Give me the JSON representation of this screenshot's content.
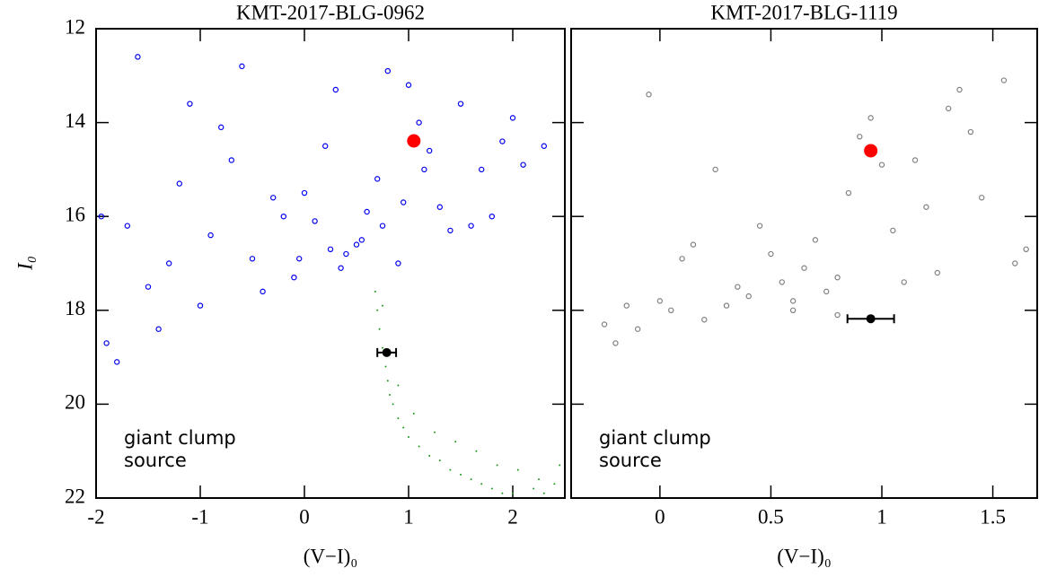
{
  "chart_data": [
    {
      "type": "scatter",
      "title": "KMT-2017-BLG-0962",
      "x_label": "(V−I)₀",
      "y_label": "I₀",
      "xlim": [
        -2,
        2.5
      ],
      "xticks": [
        -2,
        -1,
        0,
        1,
        2
      ],
      "ylim": [
        22,
        12
      ],
      "yticks": [
        12,
        14,
        16,
        18,
        20,
        22
      ],
      "series": [
        {
          "marker": "open-circle",
          "color": "#0000ee",
          "x": [
            -1.9,
            -1.7,
            -1.5,
            -1.3,
            -1.1,
            -0.9,
            -0.7,
            -0.5,
            -0.3,
            -0.1,
            0.1,
            0.3,
            0.5,
            0.7,
            0.9,
            1.1,
            1.3,
            1.5,
            1.7,
            1.9,
            2.1,
            -1.8,
            -1.4,
            -1.0,
            -0.6,
            -0.2,
            0.2,
            0.6,
            1.0,
            1.4,
            1.8,
            -1.6,
            -1.2,
            -0.8,
            -0.4,
            0.0,
            0.4,
            0.8,
            1.2,
            1.6,
            2.0,
            2.3,
            -1.95,
            -0.05,
            0.35,
            0.55,
            0.75,
            0.95,
            1.15,
            0.25
          ],
          "values": [
            18.7,
            16.2,
            17.5,
            17.0,
            13.6,
            16.4,
            14.8,
            16.9,
            15.6,
            17.3,
            16.1,
            13.3,
            16.6,
            15.2,
            17.0,
            14.0,
            15.8,
            13.6,
            15.0,
            14.4,
            14.9,
            19.1,
            18.4,
            17.9,
            12.8,
            16.0,
            14.5,
            15.9,
            13.2,
            16.3,
            16.0,
            12.6,
            15.3,
            14.1,
            17.6,
            15.5,
            16.8,
            12.9,
            14.6,
            16.2,
            13.9,
            14.5,
            16.0,
            16.9,
            17.1,
            16.5,
            16.2,
            15.7,
            15.0,
            16.7
          ]
        },
        {
          "marker": "dot",
          "color": "#1a9a1a",
          "x": [
            0.68,
            0.7,
            0.72,
            0.75,
            0.78,
            0.8,
            0.82,
            0.85,
            0.9,
            0.95,
            1.0,
            1.1,
            1.2,
            1.3,
            1.4,
            1.5,
            1.6,
            1.7,
            1.8,
            1.9,
            2.0,
            2.1,
            2.2,
            2.3,
            2.4,
            0.75,
            0.9,
            1.05,
            1.25,
            1.45,
            1.65,
            1.85,
            2.05,
            2.25,
            2.45
          ],
          "values": [
            17.6,
            18.0,
            18.4,
            18.8,
            19.2,
            19.5,
            19.8,
            20.0,
            20.3,
            20.5,
            20.7,
            20.9,
            21.1,
            21.2,
            21.4,
            21.5,
            21.6,
            21.7,
            21.8,
            21.9,
            21.9,
            22.0,
            21.8,
            21.9,
            21.7,
            17.9,
            19.6,
            20.2,
            20.6,
            20.8,
            21.0,
            21.3,
            21.4,
            21.6,
            21.3
          ]
        },
        {
          "name": "giant clump",
          "marker": "filled-circle",
          "color": "#ff0000",
          "x": [
            1.05
          ],
          "values": [
            14.39
          ]
        },
        {
          "name": "source",
          "marker": "filled-circle",
          "color": "#000000",
          "x": [
            0.79
          ],
          "values": [
            18.9
          ],
          "xerr": [
            0.09
          ]
        }
      ]
    },
    {
      "type": "scatter",
      "title": "KMT-2017-BLG-1119",
      "x_label": "(V−I)₀",
      "xlim": [
        -0.4,
        1.7
      ],
      "xticks": [
        0,
        0.5,
        1,
        1.5
      ],
      "ylim": [
        22,
        12
      ],
      "yticks": [
        12,
        14,
        16,
        18,
        20,
        22
      ],
      "series": [
        {
          "marker": "open-circle",
          "color": "#808080",
          "x": [
            -0.25,
            -0.15,
            -0.05,
            0.05,
            0.15,
            0.25,
            0.35,
            0.45,
            0.55,
            0.65,
            0.75,
            0.85,
            0.95,
            1.05,
            1.15,
            1.25,
            1.35,
            1.45,
            1.55,
            1.65,
            -0.2,
            0.0,
            0.2,
            0.4,
            0.6,
            0.8,
            1.0,
            1.2,
            1.4,
            1.6,
            -0.1,
            0.1,
            0.3,
            0.5,
            0.7,
            0.9,
            1.1,
            1.3,
            0.6,
            0.8
          ],
          "values": [
            18.3,
            17.9,
            13.4,
            18.0,
            16.6,
            15.0,
            17.5,
            16.2,
            17.4,
            17.1,
            17.6,
            15.5,
            13.9,
            16.3,
            14.8,
            17.2,
            13.3,
            15.6,
            13.1,
            16.7,
            18.7,
            17.8,
            18.2,
            17.7,
            18.0,
            17.3,
            14.9,
            15.8,
            14.2,
            17.0,
            18.4,
            16.9,
            17.9,
            16.8,
            16.5,
            14.3,
            17.4,
            13.7,
            17.8,
            18.1
          ]
        },
        {
          "name": "giant clump",
          "marker": "filled-circle",
          "color": "#ff0000",
          "x": [
            0.95
          ],
          "values": [
            14.6
          ]
        },
        {
          "name": "source",
          "marker": "filled-circle",
          "color": "#000000",
          "x": [
            0.95
          ],
          "values": [
            18.18
          ],
          "xerr": [
            0.105
          ]
        }
      ]
    }
  ]
}
